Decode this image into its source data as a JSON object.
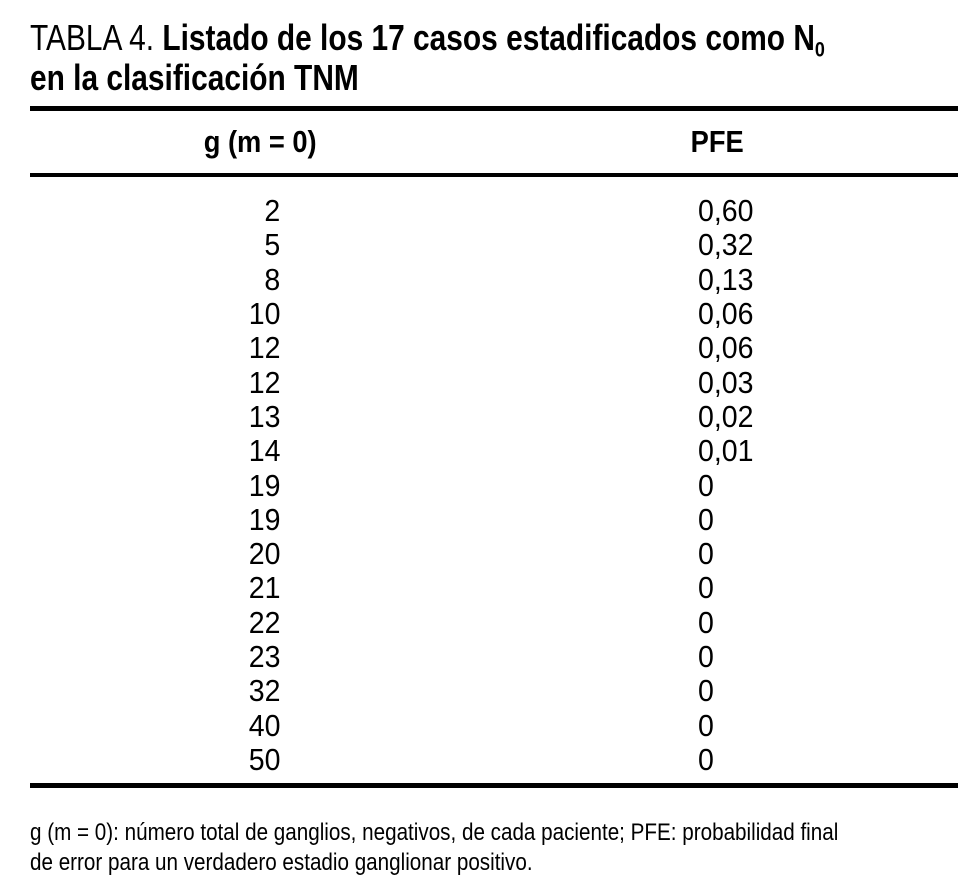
{
  "table": {
    "label": "TABLA 4.",
    "title_line1": "Listado de los 17 casos estadificados como N",
    "title_subscript": "0",
    "title_line2": "en la clasificación TNM",
    "columns": {
      "g": "g (m = 0)",
      "pfe": "PFE"
    },
    "rows": [
      {
        "g": "2",
        "pfe": "0,60"
      },
      {
        "g": "5",
        "pfe": "0,32"
      },
      {
        "g": "8",
        "pfe": "0,13"
      },
      {
        "g": "10",
        "pfe": "0,06"
      },
      {
        "g": "12",
        "pfe": "0,06"
      },
      {
        "g": "12",
        "pfe": "0,03"
      },
      {
        "g": "13",
        "pfe": "0,02"
      },
      {
        "g": "14",
        "pfe": "0,01"
      },
      {
        "g": "19",
        "pfe": "0"
      },
      {
        "g": "19",
        "pfe": "0"
      },
      {
        "g": "20",
        "pfe": "0"
      },
      {
        "g": "21",
        "pfe": "0"
      },
      {
        "g": "22",
        "pfe": "0"
      },
      {
        "g": "23",
        "pfe": "0"
      },
      {
        "g": "32",
        "pfe": "0"
      },
      {
        "g": "40",
        "pfe": "0"
      },
      {
        "g": "50",
        "pfe": "0"
      }
    ],
    "footnote_line1": "g (m = 0): número total de ganglios, negativos, de cada paciente; PFE: probabilidad final",
    "footnote_line2": "de error para un verdadero estadio ganglionar positivo.",
    "colors": {
      "text": "#000000",
      "background": "#ffffff",
      "rule": "#000000"
    }
  }
}
